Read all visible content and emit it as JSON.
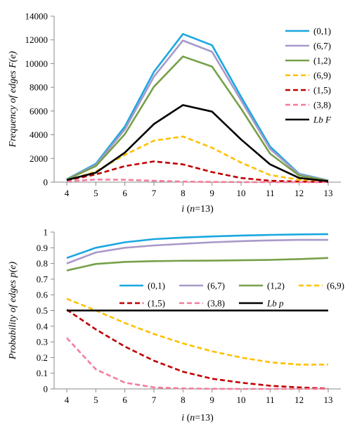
{
  "chart_data": [
    {
      "type": "line",
      "x": [
        4,
        5,
        6,
        7,
        8,
        9,
        10,
        11,
        12,
        13
      ],
      "xlabel": "i (n=13)",
      "ylabel": "Frequency of edges F(e)",
      "ylim": [
        0,
        14000
      ],
      "yticks": [
        0,
        2000,
        4000,
        6000,
        8000,
        10000,
        12000,
        14000
      ],
      "legend_position": "right",
      "series": [
        {
          "name": "(0,1)",
          "color": "#1aa7e0",
          "dash": "solid",
          "values": [
            250,
            1550,
            4700,
            9300,
            12500,
            11550,
            7200,
            3000,
            700,
            150
          ]
        },
        {
          "name": "(6,7)",
          "color": "#a899c9",
          "dash": "solid",
          "values": [
            240,
            1450,
            4450,
            8900,
            11950,
            11000,
            6900,
            2800,
            650,
            140
          ]
        },
        {
          "name": "(1,2)",
          "color": "#77a04a",
          "dash": "solid",
          "values": [
            220,
            1350,
            4050,
            8050,
            10600,
            9750,
            6200,
            2400,
            550,
            120
          ]
        },
        {
          "name": "(6,9)",
          "color": "#ffc000",
          "dash": "dashed",
          "values": [
            120,
            900,
            2300,
            3500,
            3850,
            2900,
            1650,
            600,
            200,
            50
          ]
        },
        {
          "name": "(1,5)",
          "color": "#c00000",
          "dash": "dashed",
          "values": [
            150,
            650,
            1350,
            1750,
            1500,
            850,
            350,
            120,
            40,
            10
          ]
        },
        {
          "name": "(3,8)",
          "color": "#f47c9c",
          "dash": "dashed",
          "values": [
            70,
            220,
            200,
            120,
            50,
            20,
            5,
            0,
            0,
            0
          ]
        },
        {
          "name": "Lb F",
          "color": "#000000",
          "dash": "solid",
          "values": [
            180,
            800,
            2500,
            4900,
            6500,
            5950,
            3600,
            1500,
            350,
            80
          ]
        }
      ]
    },
    {
      "type": "line",
      "x": [
        4,
        5,
        6,
        7,
        8,
        9,
        10,
        11,
        12,
        13
      ],
      "xlabel": "i (n=13)",
      "ylabel": "Probability of edges p(e)",
      "ylim": [
        0,
        1
      ],
      "yticks": [
        0,
        0.1,
        0.2,
        0.3,
        0.4,
        0.5,
        0.6,
        0.7,
        0.8,
        0.9,
        1
      ],
      "legend_position": "center",
      "series": [
        {
          "name": "(0,1)",
          "color": "#1aa7e0",
          "dash": "solid",
          "values": [
            0.835,
            0.9,
            0.935,
            0.955,
            0.965,
            0.972,
            0.978,
            0.982,
            0.985,
            0.987
          ]
        },
        {
          "name": "(6,7)",
          "color": "#a899c9",
          "dash": "solid",
          "values": [
            0.8,
            0.87,
            0.9,
            0.915,
            0.925,
            0.935,
            0.942,
            0.947,
            0.95,
            0.95
          ]
        },
        {
          "name": "(1,2)",
          "color": "#77a04a",
          "dash": "solid",
          "values": [
            0.755,
            0.797,
            0.81,
            0.815,
            0.817,
            0.818,
            0.82,
            0.823,
            0.828,
            0.835
          ]
        },
        {
          "name": "(6,9)",
          "color": "#ffc000",
          "dash": "dashed",
          "values": [
            0.575,
            0.5,
            0.42,
            0.35,
            0.29,
            0.24,
            0.2,
            0.17,
            0.155,
            0.155
          ]
        },
        {
          "name": "(1,5)",
          "color": "#c00000",
          "dash": "dashed",
          "values": [
            0.505,
            0.38,
            0.27,
            0.18,
            0.11,
            0.065,
            0.04,
            0.02,
            0.01,
            0.002
          ]
        },
        {
          "name": "(3,8)",
          "color": "#f47c9c",
          "dash": "dashed",
          "values": [
            0.325,
            0.125,
            0.04,
            0.01,
            0.003,
            0.001,
            0.0,
            0.0,
            0.0,
            0.0
          ]
        },
        {
          "name": "Lb p",
          "color": "#000000",
          "dash": "solid",
          "values": [
            0.5,
            0.5,
            0.5,
            0.5,
            0.5,
            0.5,
            0.5,
            0.5,
            0.5,
            0.5
          ]
        }
      ]
    }
  ]
}
